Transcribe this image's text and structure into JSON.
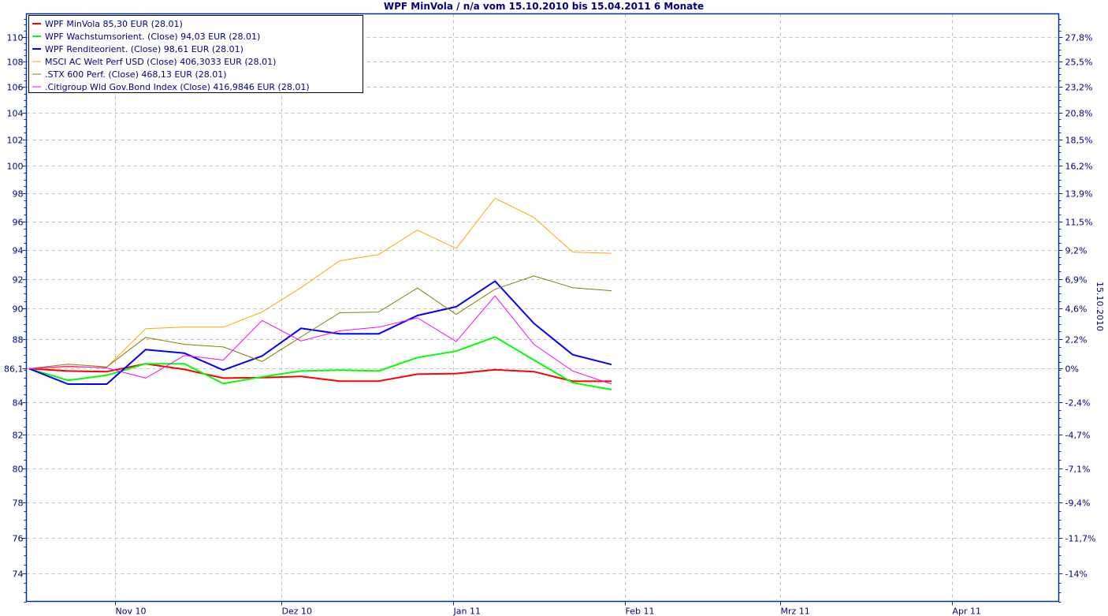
{
  "chart_data": {
    "type": "line",
    "title": "WPF MinVola / n/a vom 15.10.2010 bis 15.04.2011 6 Monate",
    "right_axis_label": "15.10.2010",
    "y_scale": "log",
    "ylim": [
      72.5,
      111.9
    ],
    "x_range": [
      "2010-10-15",
      "2011-04-15"
    ],
    "grid": true,
    "legend_position": "top-left",
    "base_value": 86.1,
    "y_ticks": [
      {
        "value": 110,
        "label": "110",
        "pct": "27,8%"
      },
      {
        "value": 108,
        "label": "108",
        "pct": "25,5%"
      },
      {
        "value": 106,
        "label": "106",
        "pct": "23,2%"
      },
      {
        "value": 104,
        "label": "104",
        "pct": "20,8%"
      },
      {
        "value": 102,
        "label": "102",
        "pct": "18,5%"
      },
      {
        "value": 100,
        "label": "100",
        "pct": "16,2%"
      },
      {
        "value": 98,
        "label": "98",
        "pct": "13,9%"
      },
      {
        "value": 96,
        "label": "96",
        "pct": "11,5%"
      },
      {
        "value": 94,
        "label": "94",
        "pct": "9,2%"
      },
      {
        "value": 92,
        "label": "92",
        "pct": "6,9%"
      },
      {
        "value": 90,
        "label": "90",
        "pct": "4,6%"
      },
      {
        "value": 88,
        "label": "88",
        "pct": "2,2%"
      },
      {
        "value": 86.1,
        "label": "86,1",
        "pct": "0%"
      },
      {
        "value": 84,
        "label": "84",
        "pct": "-2,4%"
      },
      {
        "value": 82,
        "label": "82",
        "pct": "-4,7%"
      },
      {
        "value": 80,
        "label": "80",
        "pct": "-7,1%"
      },
      {
        "value": 78,
        "label": "78",
        "pct": "-9,4%"
      },
      {
        "value": 76,
        "label": "76",
        "pct": "-11,7%"
      },
      {
        "value": 74,
        "label": "74",
        "pct": "-14%"
      }
    ],
    "x_ticks": [
      {
        "date": "2010-11-01",
        "label": "Nov 10"
      },
      {
        "date": "2010-12-01",
        "label": "Dez 10"
      },
      {
        "date": "2011-01-01",
        "label": "Jan 11"
      },
      {
        "date": "2011-02-01",
        "label": "Feb 11"
      },
      {
        "date": "2011-03-01",
        "label": "Mrz 11"
      },
      {
        "date": "2011-04-01",
        "label": "Apr 11"
      }
    ],
    "x": [
      "2010-10-15",
      "2010-10-22",
      "2010-10-29",
      "2010-11-05",
      "2010-11-12",
      "2010-11-19",
      "2010-11-26",
      "2010-12-03",
      "2010-12-10",
      "2010-12-17",
      "2010-12-24",
      "2010-12-31",
      "2011-01-07",
      "2011-01-14",
      "2011-01-21",
      "2011-01-28"
    ],
    "series": [
      {
        "name": "WPF MinVola 85,30 EUR (28.01)",
        "color": "#ff0000",
        "width": 2,
        "values": [
          86.1,
          85.95,
          85.91,
          86.41,
          86.05,
          85.5,
          85.53,
          85.61,
          85.31,
          85.31,
          85.75,
          85.79,
          86.03,
          85.91,
          85.3,
          85.3
        ]
      },
      {
        "name": "WPF Wachstumsorient. (Close) 94,03 EUR (28.01)",
        "color": "#00ff00",
        "width": 2,
        "values": [
          86.1,
          85.36,
          85.68,
          86.41,
          86.41,
          85.15,
          85.58,
          85.95,
          86.01,
          85.95,
          86.81,
          87.22,
          88.14,
          86.65,
          85.21,
          84.78
        ]
      },
      {
        "name": "WPF Renditeorient. (Close) 98,61 EUR (28.01)",
        "color": "#0000ff",
        "width": 2,
        "values": [
          86.1,
          85.12,
          85.12,
          87.32,
          87.09,
          86.01,
          86.91,
          88.7,
          88.34,
          88.34,
          89.55,
          90.13,
          91.85,
          89.03,
          86.99,
          86.36
        ]
      },
      {
        "name": "MSCI AC Welt Perf USD (Close) 406,3033 EUR (28.01)",
        "color": "#ffa500",
        "width": 1,
        "values": [
          86.1,
          86.2,
          86.19,
          88.68,
          88.78,
          88.78,
          89.78,
          91.41,
          93.24,
          93.67,
          95.38,
          94.1,
          97.65,
          96.27,
          93.84,
          93.76
        ]
      },
      {
        "name": ".STX 600 Perf. (Close) 468,13 EUR (28.01)",
        "color": "#808000",
        "width": 1,
        "values": [
          86.1,
          86.38,
          86.21,
          88.11,
          87.66,
          87.49,
          86.55,
          88.14,
          89.73,
          89.78,
          91.38,
          89.62,
          91.3,
          92.2,
          91.41,
          91.2
        ]
      },
      {
        "name": ".Citigroup Wld Gov.Bond Index (Close) 416,9846 EUR (28.01)",
        "color": "#ff00ff",
        "width": 1,
        "values": [
          86.1,
          86.26,
          86.14,
          85.5,
          86.94,
          86.65,
          89.22,
          87.88,
          88.54,
          88.78,
          89.39,
          87.85,
          90.85,
          87.66,
          85.95,
          85.12
        ]
      }
    ]
  }
}
